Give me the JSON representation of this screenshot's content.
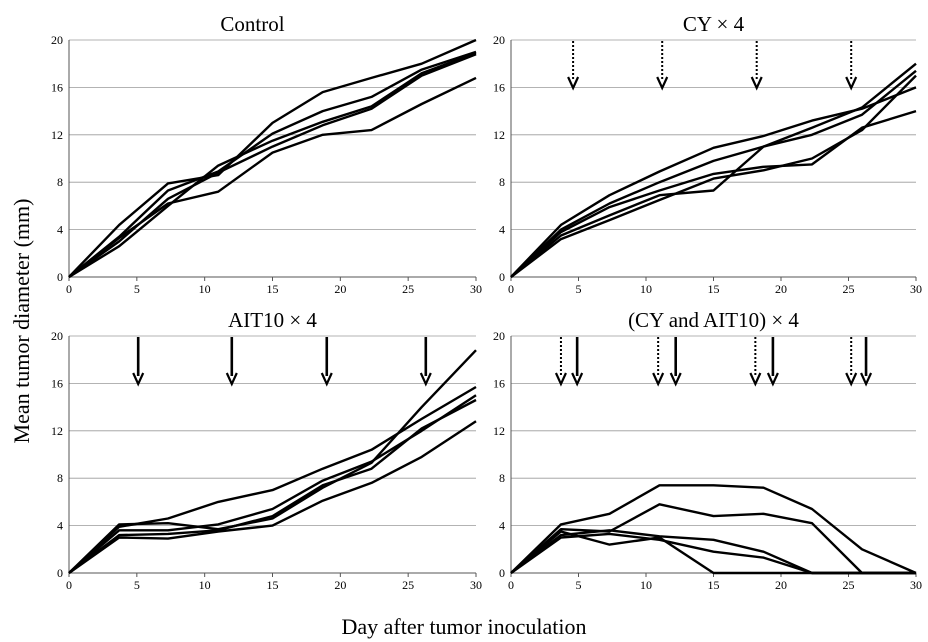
{
  "figure": {
    "ylabel": "Mean tumor diameter (mm)",
    "xlabel": "Day after tumor inoculation"
  },
  "legend_meaning": {
    "dotted_arrow": "CY",
    "solid_arrow": "AIT10"
  },
  "chart_data": [
    {
      "type": "line",
      "title": "Control",
      "xlim": [
        0,
        30
      ],
      "ylim": [
        0,
        20
      ],
      "xticks": [
        0,
        5,
        10,
        15,
        20,
        25,
        30
      ],
      "yticks": [
        0,
        4,
        8,
        12,
        16,
        20
      ],
      "grid": "horizontal",
      "x": [
        0,
        3.7,
        7.3,
        11,
        15,
        18.7,
        22.3,
        26,
        30
      ],
      "series": [
        {
          "values": [
            0,
            4.4,
            7.9,
            8.6,
            13.0,
            15.6,
            16.8,
            18.0,
            20.0
          ]
        },
        {
          "values": [
            0,
            3.4,
            7.3,
            8.9,
            12.1,
            14.0,
            15.2,
            17.5,
            19.0
          ]
        },
        {
          "values": [
            0,
            2.6,
            6.0,
            9.4,
            11.5,
            13.1,
            14.4,
            17.2,
            18.9
          ]
        },
        {
          "values": [
            0,
            3.0,
            6.6,
            8.8,
            11.0,
            12.8,
            14.2,
            17.0,
            18.8
          ]
        },
        {
          "values": [
            0,
            3.3,
            6.2,
            7.2,
            10.5,
            12.0,
            12.4,
            14.6,
            16.8
          ]
        }
      ],
      "arrows": []
    },
    {
      "type": "line",
      "title": "CY × 4",
      "xlim": [
        0,
        30
      ],
      "ylim": [
        0,
        20
      ],
      "xticks": [
        0,
        5,
        10,
        15,
        20,
        25,
        30
      ],
      "yticks": [
        0,
        4,
        8,
        12,
        16,
        20
      ],
      "grid": "horizontal",
      "x": [
        0,
        3.7,
        7.3,
        11,
        15,
        18.7,
        22.3,
        26,
        30
      ],
      "series": [
        {
          "values": [
            0,
            4.4,
            6.9,
            8.9,
            10.9,
            11.9,
            13.2,
            14.2,
            16.0
          ]
        },
        {
          "values": [
            0,
            4.0,
            6.2,
            8.0,
            9.8,
            11.0,
            12.6,
            14.3,
            18.0
          ]
        },
        {
          "values": [
            0,
            3.8,
            5.9,
            7.3,
            8.7,
            9.3,
            9.5,
            12.6,
            14.0
          ]
        },
        {
          "values": [
            0,
            3.5,
            5.2,
            6.9,
            7.3,
            11.0,
            12.0,
            13.7,
            17.4
          ]
        },
        {
          "values": [
            0,
            3.2,
            4.8,
            6.5,
            8.3,
            9.0,
            10.0,
            12.4,
            17.0
          ]
        }
      ],
      "arrows": [
        {
          "day": 4.6,
          "kind": "dotted_arrow"
        },
        {
          "day": 11.2,
          "kind": "dotted_arrow"
        },
        {
          "day": 18.2,
          "kind": "dotted_arrow"
        },
        {
          "day": 25.2,
          "kind": "dotted_arrow"
        }
      ]
    },
    {
      "type": "line",
      "title": "AIT10 × 4",
      "xlim": [
        0,
        30
      ],
      "ylim": [
        0,
        20
      ],
      "xticks": [
        0,
        5,
        10,
        15,
        20,
        25,
        30
      ],
      "yticks": [
        0,
        4,
        8,
        12,
        16,
        20
      ],
      "grid": "horizontal",
      "x": [
        0,
        3.7,
        7.3,
        11,
        15,
        18.7,
        22.3,
        26,
        30
      ],
      "series": [
        {
          "values": [
            0,
            4.1,
            4.2,
            3.7,
            4.6,
            7.2,
            9.3,
            14.0,
            18.8
          ]
        },
        {
          "values": [
            0,
            3.9,
            4.6,
            6.0,
            7.0,
            8.8,
            10.4,
            13.0,
            15.7
          ]
        },
        {
          "values": [
            0,
            3.6,
            3.6,
            4.1,
            5.4,
            7.8,
            9.4,
            12.0,
            15.0
          ]
        },
        {
          "values": [
            0,
            3.2,
            3.3,
            3.6,
            4.8,
            7.4,
            8.8,
            12.2,
            14.6
          ]
        },
        {
          "values": [
            0,
            3.0,
            2.9,
            3.5,
            4.0,
            6.1,
            7.6,
            9.8,
            12.8
          ]
        }
      ],
      "arrows": [
        {
          "day": 5.1,
          "kind": "solid_arrow"
        },
        {
          "day": 12.0,
          "kind": "solid_arrow"
        },
        {
          "day": 19.0,
          "kind": "solid_arrow"
        },
        {
          "day": 26.3,
          "kind": "solid_arrow"
        }
      ]
    },
    {
      "type": "line",
      "title": "(CY and AIT10) × 4",
      "xlim": [
        0,
        30
      ],
      "ylim": [
        0,
        20
      ],
      "xticks": [
        0,
        5,
        10,
        15,
        20,
        25,
        30
      ],
      "yticks": [
        0,
        4,
        8,
        12,
        16,
        20
      ],
      "grid": "horizontal",
      "x": [
        0,
        3.7,
        7.3,
        11,
        15,
        18.7,
        22.3,
        26,
        30
      ],
      "series": [
        {
          "values": [
            0,
            4.1,
            5.0,
            7.4,
            7.4,
            7.2,
            5.4,
            2.0,
            0
          ]
        },
        {
          "values": [
            0,
            3.7,
            3.5,
            5.8,
            4.8,
            5.0,
            4.2,
            0,
            0
          ]
        },
        {
          "values": [
            0,
            3.2,
            3.6,
            3.1,
            2.8,
            1.8,
            0,
            0,
            0
          ]
        },
        {
          "values": [
            0,
            3.0,
            3.3,
            2.8,
            1.8,
            1.3,
            0,
            0,
            0
          ]
        },
        {
          "values": [
            0,
            3.5,
            2.4,
            3.0,
            0,
            0,
            0,
            0,
            0
          ]
        }
      ],
      "arrows": [
        {
          "day": 3.7,
          "kind": "dotted_arrow"
        },
        {
          "day": 4.9,
          "kind": "solid_arrow"
        },
        {
          "day": 10.9,
          "kind": "dotted_arrow"
        },
        {
          "day": 12.2,
          "kind": "solid_arrow"
        },
        {
          "day": 18.1,
          "kind": "dotted_arrow"
        },
        {
          "day": 19.4,
          "kind": "solid_arrow"
        },
        {
          "day": 25.2,
          "kind": "dotted_arrow"
        },
        {
          "day": 26.3,
          "kind": "solid_arrow"
        }
      ]
    }
  ]
}
